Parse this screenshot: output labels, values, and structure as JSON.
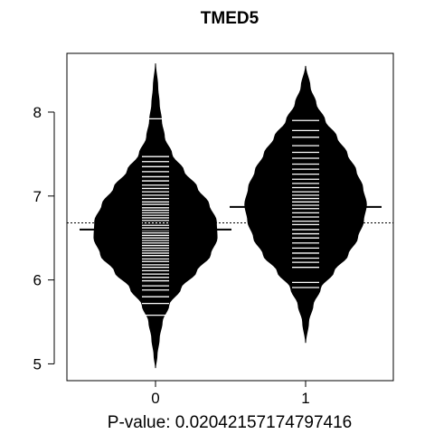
{
  "chart_data": {
    "type": "beanplot",
    "title": "TMED5",
    "subtitle": "P-value: 0.02042157174797416",
    "xlabel": "",
    "ylabel": "",
    "categories": [
      "0",
      "1"
    ],
    "y_ticks": [
      5,
      6,
      7,
      8
    ],
    "ylim": [
      4.8,
      8.7
    ],
    "overall_mean": 6.68,
    "grid": false,
    "legend": "none",
    "beans": [
      {
        "category": "0",
        "mean": 6.6,
        "density_ymin": 4.95,
        "density_ymax": 8.58,
        "density": [
          [
            4.95,
            0.0
          ],
          [
            5.1,
            0.02
          ],
          [
            5.3,
            0.05
          ],
          [
            5.5,
            0.09
          ],
          [
            5.7,
            0.18
          ],
          [
            5.9,
            0.34
          ],
          [
            6.1,
            0.55
          ],
          [
            6.3,
            0.74
          ],
          [
            6.5,
            0.83
          ],
          [
            6.7,
            0.82
          ],
          [
            6.9,
            0.72
          ],
          [
            7.1,
            0.56
          ],
          [
            7.3,
            0.38
          ],
          [
            7.5,
            0.22
          ],
          [
            7.7,
            0.12
          ],
          [
            7.9,
            0.08
          ],
          [
            8.1,
            0.05
          ],
          [
            8.3,
            0.03
          ],
          [
            8.58,
            0.0
          ]
        ],
        "observations": [
          5.58,
          5.72,
          5.8,
          5.88,
          5.93,
          5.99,
          6.03,
          6.07,
          6.11,
          6.15,
          6.18,
          6.22,
          6.25,
          6.29,
          6.32,
          6.35,
          6.38,
          6.41,
          6.44,
          6.47,
          6.5,
          6.53,
          6.56,
          6.59,
          6.62,
          6.65,
          6.68,
          6.71,
          6.74,
          6.77,
          6.8,
          6.83,
          6.86,
          6.9,
          6.93,
          6.97,
          7.01,
          7.05,
          7.09,
          7.13,
          7.18,
          7.23,
          7.29,
          7.35,
          7.41,
          7.47,
          7.92
        ]
      },
      {
        "category": "1",
        "mean": 6.87,
        "density_ymin": 5.25,
        "density_ymax": 8.55,
        "density": [
          [
            5.25,
            0.0
          ],
          [
            5.5,
            0.04
          ],
          [
            5.7,
            0.1
          ],
          [
            5.9,
            0.2
          ],
          [
            6.1,
            0.38
          ],
          [
            6.3,
            0.57
          ],
          [
            6.5,
            0.7
          ],
          [
            6.7,
            0.78
          ],
          [
            6.9,
            0.82
          ],
          [
            7.1,
            0.77
          ],
          [
            7.3,
            0.68
          ],
          [
            7.5,
            0.56
          ],
          [
            7.7,
            0.42
          ],
          [
            7.9,
            0.26
          ],
          [
            8.1,
            0.14
          ],
          [
            8.3,
            0.06
          ],
          [
            8.55,
            0.0
          ]
        ],
        "observations": [
          5.91,
          5.97,
          6.15,
          6.21,
          6.26,
          6.32,
          6.38,
          6.44,
          6.5,
          6.55,
          6.6,
          6.66,
          6.7,
          6.75,
          6.8,
          6.85,
          6.89,
          6.93,
          6.97,
          7.01,
          7.05,
          7.1,
          7.15,
          7.2,
          7.26,
          7.32,
          7.38,
          7.45,
          7.52,
          7.6,
          7.7,
          7.78,
          7.9
        ]
      }
    ]
  }
}
